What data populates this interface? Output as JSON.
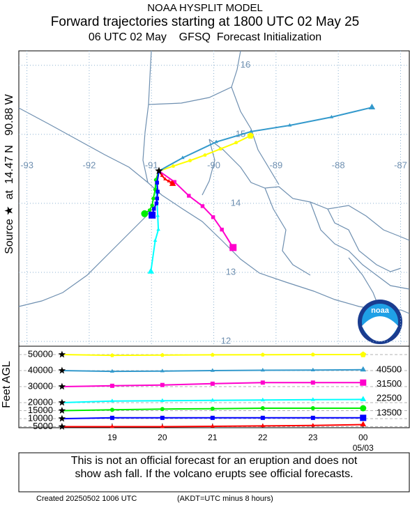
{
  "header": {
    "model": "NOAA HYSPLIT MODEL",
    "title": "Forward trajectories starting at 1800 UTC 02 May 25",
    "subtitle": "06 UTC 02 May    GFSQ  Forecast Initialization"
  },
  "map": {
    "source_label": "Source ★  at  14.47 N   90.88 W",
    "xlim": [
      -93.13,
      -86.86
    ],
    "ylim": [
      11.93,
      16.21
    ],
    "xticks": [
      -93,
      -92,
      -91,
      -90,
      -89,
      -88,
      -87
    ],
    "yticks": [
      16,
      15,
      14,
      13,
      12
    ],
    "source": {
      "lon": -90.88,
      "lat": 14.47
    },
    "trajectories": [
      {
        "color": "#ffff00",
        "marker": "pentagon",
        "lon": [
          -90.88,
          -90.65,
          -90.38,
          -90.14,
          -89.89,
          -89.64,
          -89.41
        ],
        "lat": [
          14.47,
          14.54,
          14.62,
          14.7,
          14.79,
          14.88,
          14.98
        ]
      },
      {
        "color": "#3399cc",
        "marker": "triangle",
        "lon": [
          -90.88,
          -90.5,
          -89.96,
          -89.4,
          -88.78,
          -88.11,
          -87.46
        ],
        "lat": [
          14.47,
          14.66,
          14.89,
          15.04,
          15.13,
          15.25,
          15.39
        ]
      },
      {
        "color": "#ff00cc",
        "marker": "square",
        "lon": [
          -90.88,
          -90.63,
          -90.4,
          -90.18,
          -90.01,
          -89.87,
          -89.69
        ],
        "lat": [
          14.47,
          14.31,
          14.11,
          13.96,
          13.8,
          13.62,
          13.36
        ]
      },
      {
        "color": "#00ffff",
        "marker": "triangle",
        "lon": [
          -90.88,
          -90.93,
          -90.91,
          -90.9,
          -90.89,
          -90.94,
          -91.01
        ],
        "lat": [
          14.47,
          14.22,
          14.02,
          13.82,
          13.62,
          13.46,
          13.01
        ]
      },
      {
        "color": "#00ee00",
        "marker": "circle",
        "lon": [
          -90.88,
          -90.93,
          -90.94,
          -90.97,
          -90.99,
          -91.03,
          -91.11
        ],
        "lat": [
          14.47,
          14.34,
          14.2,
          14.07,
          13.97,
          13.9,
          13.85
        ]
      },
      {
        "color": "#0000ff",
        "marker": "square",
        "lon": [
          -90.88,
          -90.91,
          -90.9,
          -90.91,
          -90.92,
          -90.96,
          -90.99
        ],
        "lat": [
          14.47,
          14.3,
          14.17,
          14.07,
          14.0,
          13.92,
          13.83
        ]
      },
      {
        "color": "#ff0000",
        "marker": "triangle",
        "lon": [
          -90.88,
          -90.83,
          -90.78,
          -90.72,
          -90.68,
          -90.65,
          -90.66
        ],
        "lat": [
          14.47,
          14.4,
          14.35,
          14.32,
          14.3,
          14.28,
          14.28
        ]
      }
    ]
  },
  "heights": {
    "ylabel": "Feet AGL",
    "xlim": [
      17.14,
      24.92
    ],
    "ylim": [
      4350,
      55200
    ],
    "x": [
      18,
      19,
      20,
      21,
      22,
      23,
      24
    ],
    "xticks": [
      19,
      20,
      21,
      22,
      23,
      {
        "value": 24,
        "label": "00"
      }
    ],
    "date_label": "05/03",
    "yticks": [
      50000,
      40000,
      30000,
      20000,
      15000,
      10000,
      5000
    ],
    "right_labels": [
      40500,
      31500,
      22500,
      13500
    ],
    "series": [
      {
        "color": "#ffff00",
        "marker": "pentagon",
        "values": [
          50000,
          49500,
          49700,
          49800,
          49900,
          50000,
          50000
        ]
      },
      {
        "color": "#3399cc",
        "marker": "triangle",
        "values": [
          40000,
          39500,
          39700,
          40000,
          40200,
          40300,
          40500
        ]
      },
      {
        "color": "#ff00cc",
        "marker": "square",
        "values": [
          30000,
          30500,
          31000,
          31800,
          32500,
          32500,
          32500
        ]
      },
      {
        "color": "#00ffff",
        "marker": "triangle",
        "values": [
          20000,
          21000,
          21200,
          21400,
          21600,
          21800,
          22000
        ]
      },
      {
        "color": "#00ee00",
        "marker": "circle",
        "values": [
          15000,
          15500,
          16000,
          16200,
          16500,
          16500,
          16500
        ]
      },
      {
        "color": "#0000ff",
        "marker": "square",
        "values": [
          10000,
          10500,
          10500,
          10500,
          10500,
          10500,
          10500
        ]
      },
      {
        "color": "#ff0000",
        "marker": "triangle",
        "values": [
          5000,
          5000,
          5000,
          5200,
          5500,
          5800,
          6300
        ]
      }
    ]
  },
  "footer": {
    "disclaimer": [
      "This is not an official forecast for an eruption and does not",
      "show ash fall. If the volcano erupts see official forecasts."
    ],
    "created": "Created 20250502 1006 UTC",
    "note": "(AKDT=UTC minus 8 hours)"
  }
}
